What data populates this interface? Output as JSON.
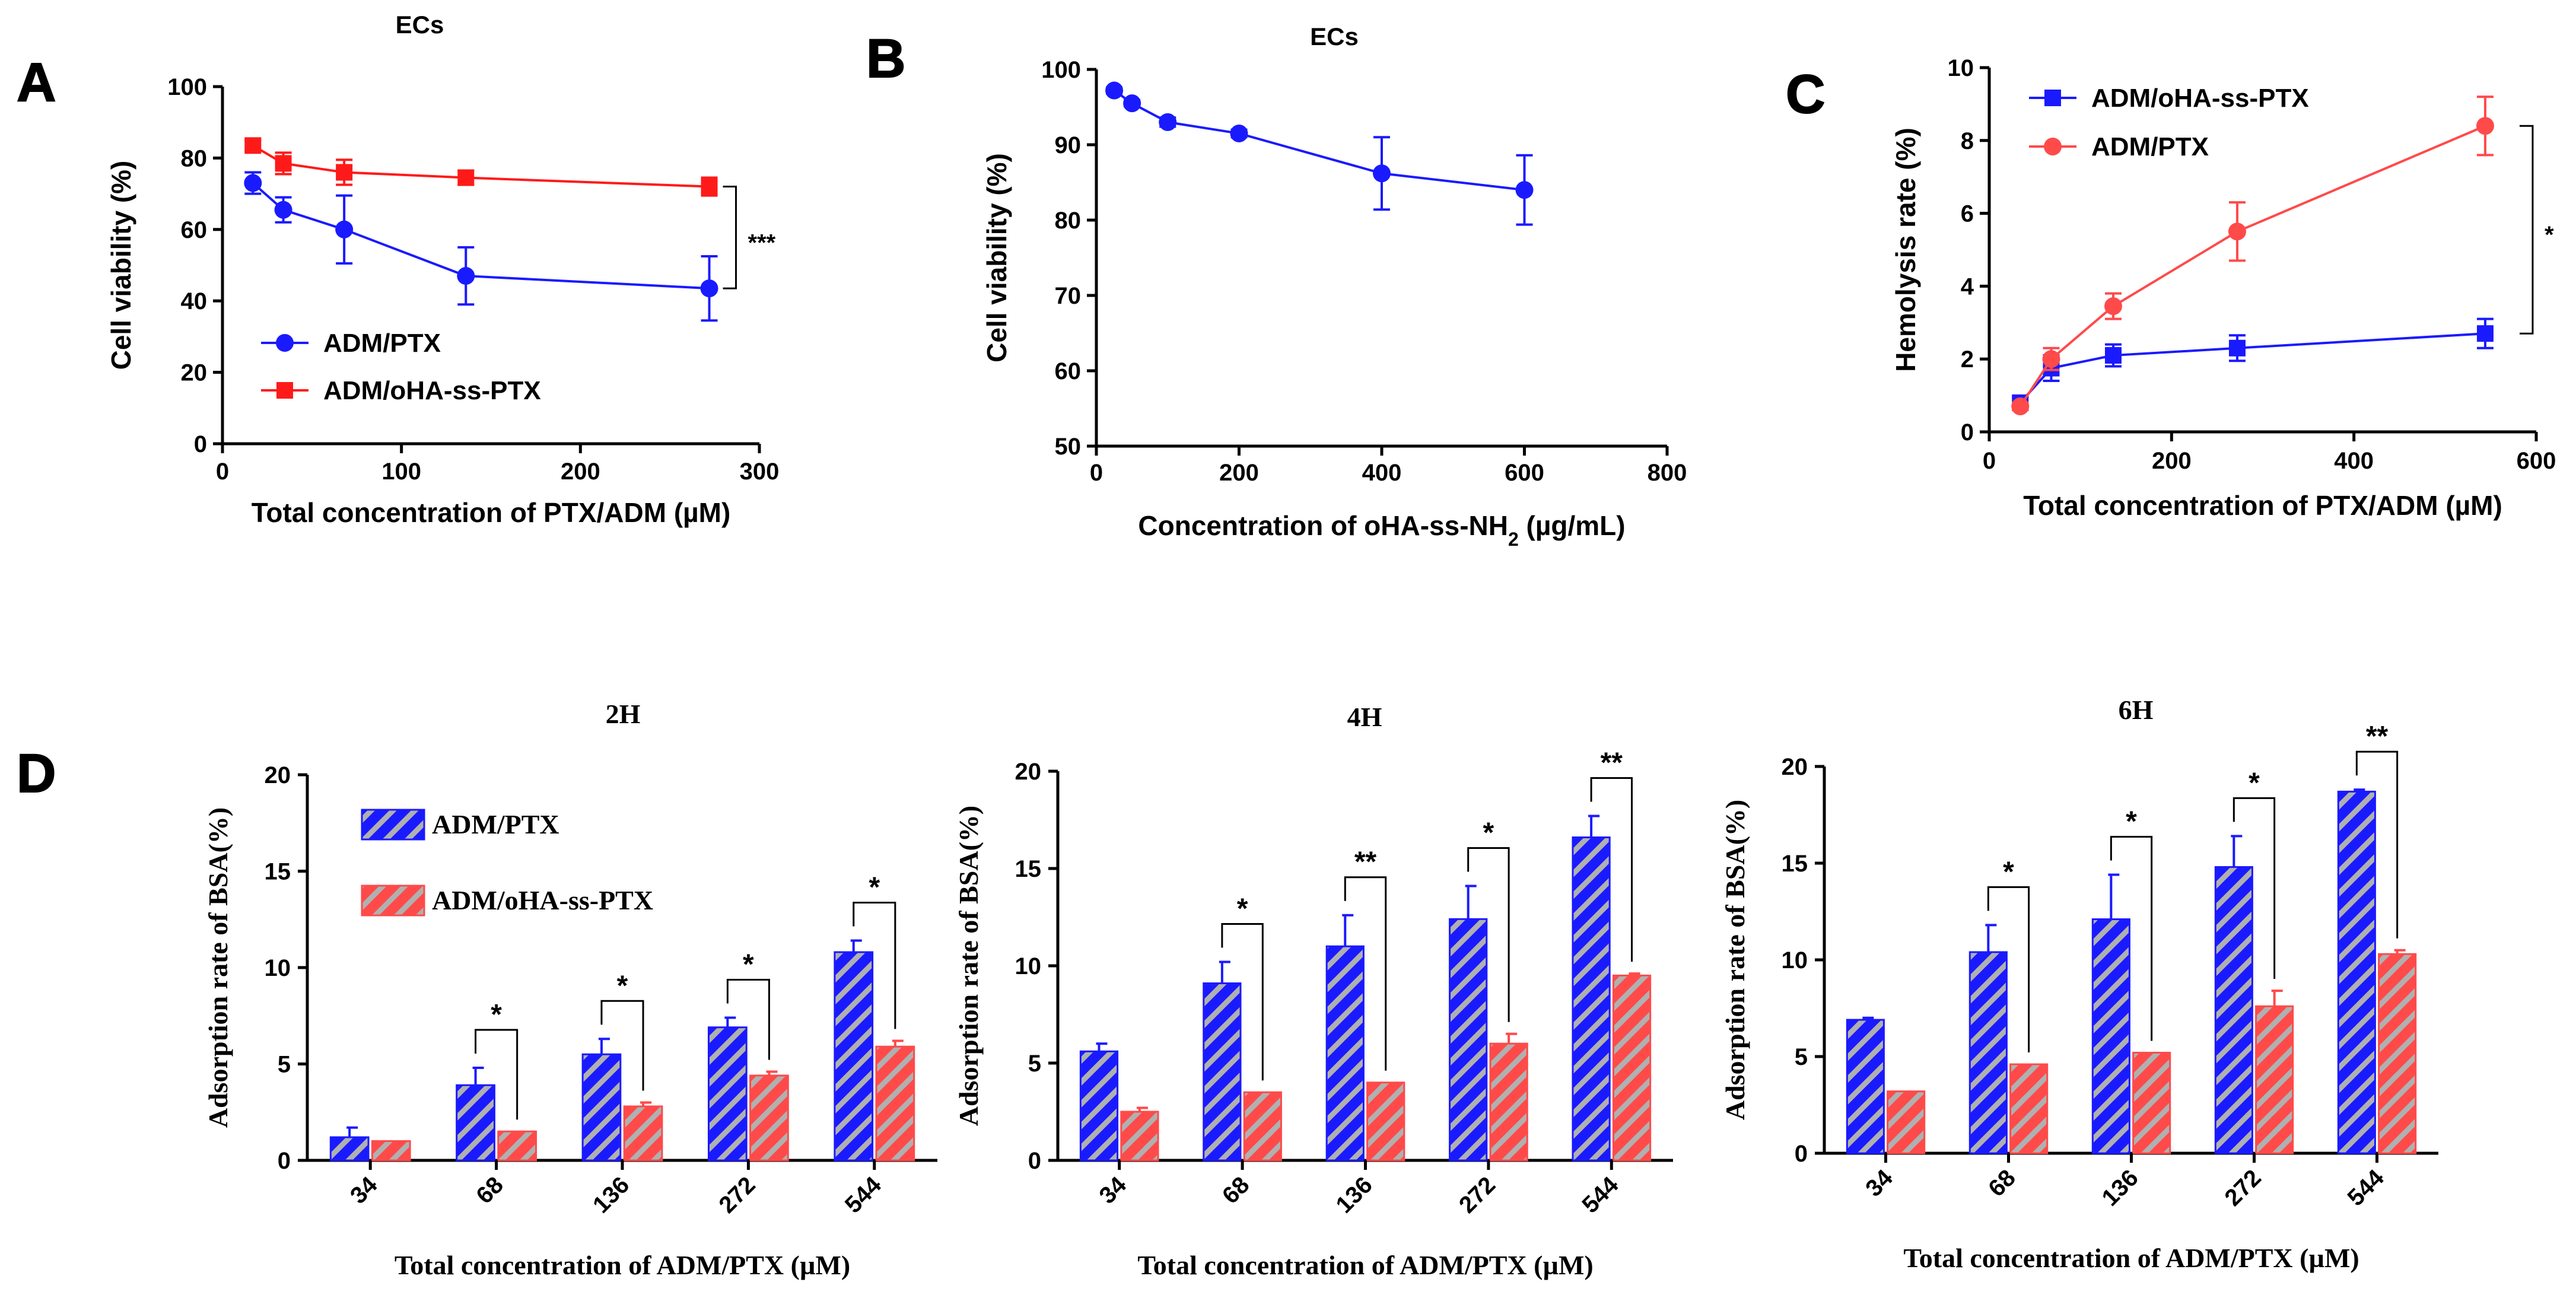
{
  "chart_data": [
    {
      "panel": "A",
      "type": "line",
      "title": "ECs",
      "xlabel": "Total concentration of PTX/ADM (µM)",
      "ylabel": "Cell viability (%)",
      "xlim": [
        0,
        300
      ],
      "ylim": [
        0,
        100
      ],
      "xticks": [
        "0",
        "100",
        "200",
        "300"
      ],
      "yticks": [
        "0",
        "20",
        "40",
        "60",
        "80",
        "100"
      ],
      "legend_position": "bottom-left",
      "series": [
        {
          "name": "ADM/PTX",
          "color": "#1a1aff",
          "marker": "circle",
          "x": [
            17,
            34,
            68,
            136,
            272
          ],
          "y": [
            73,
            65.5,
            60,
            47,
            43.5
          ],
          "err": [
            3,
            3.5,
            9.5,
            8,
            9
          ]
        },
        {
          "name": "ADM/oHA-ss-PTX",
          "color": "#ff1a1a",
          "marker": "square",
          "x": [
            17,
            34,
            68,
            136,
            272
          ],
          "y": [
            83.5,
            78.5,
            76,
            74.5,
            72
          ],
          "err": [
            1.5,
            3,
            3.5,
            2,
            2.5
          ]
        }
      ],
      "annotations": [
        {
          "text": "***",
          "between": [
            "ADM/PTX",
            "ADM/oHA-ss-PTX"
          ],
          "at_x": 272
        }
      ]
    },
    {
      "panel": "B",
      "type": "line",
      "title": "ECs",
      "xlabel": "Concentration of oHA-ss-NH",
      "xlabel_sub": "2",
      "xlabel_tail": " (µg/mL)",
      "ylabel": "Cell viability (%)",
      "xlim": [
        0,
        800
      ],
      "ylim": [
        50,
        100
      ],
      "xticks": [
        "0",
        "200",
        "400",
        "600",
        "800"
      ],
      "yticks": [
        "50",
        "60",
        "70",
        "80",
        "90",
        "100"
      ],
      "series": [
        {
          "name": "oHA-ss-NH2",
          "color": "#1a1aff",
          "marker": "circle",
          "x": [
            25,
            50,
            100,
            200,
            400,
            600
          ],
          "y": [
            97.2,
            95.5,
            93,
            91.5,
            86.2,
            84
          ],
          "err": [
            0.4,
            0.4,
            0.6,
            0.5,
            4.8,
            4.6
          ]
        }
      ]
    },
    {
      "panel": "C",
      "type": "line",
      "title": "",
      "xlabel": "Total concentration of PTX/ADM (µM)",
      "ylabel": "Hemolysis rate (%)",
      "xlim": [
        0,
        600
      ],
      "ylim": [
        0,
        10
      ],
      "xticks": [
        "0",
        "200",
        "400",
        "600"
      ],
      "yticks": [
        "0",
        "2",
        "4",
        "6",
        "8",
        "10"
      ],
      "legend_position": "top-left",
      "series": [
        {
          "name": "ADM/oHA-ss-PTX",
          "color": "#1a1aff",
          "marker": "square",
          "x": [
            34,
            68,
            136,
            272,
            544
          ],
          "y": [
            0.8,
            1.75,
            2.1,
            2.3,
            2.7
          ],
          "err": [
            0.15,
            0.35,
            0.3,
            0.35,
            0.4
          ]
        },
        {
          "name": "ADM/PTX",
          "color": "#ff4a4a",
          "marker": "circle",
          "x": [
            34,
            68,
            136,
            272,
            544
          ],
          "y": [
            0.7,
            2.0,
            3.45,
            5.5,
            8.4
          ],
          "err": [
            0.1,
            0.3,
            0.35,
            0.8,
            0.8
          ]
        }
      ],
      "annotations": [
        {
          "text": "*",
          "between": [
            "ADM/PTX",
            "ADM/oHA-ss-PTX"
          ],
          "at_x": 544
        }
      ]
    },
    {
      "panel": "D",
      "type": "bar",
      "title": "2H",
      "xlabel": "Total concentration of ADM/PTX (µM)",
      "ylabel": "Adsorption rate of BSA(%)",
      "ylim": [
        0,
        20
      ],
      "yticks": [
        "0",
        "5",
        "10",
        "15",
        "20"
      ],
      "categories": [
        "34",
        "68",
        "136",
        "272",
        "544"
      ],
      "legend_position": "top-left",
      "series": [
        {
          "name": "ADM/PTX",
          "color": "#1a1aff",
          "values": [
            1.2,
            3.9,
            5.5,
            6.9,
            10.8
          ],
          "err": [
            0.5,
            0.9,
            0.8,
            0.5,
            0.6
          ]
        },
        {
          "name": "ADM/oHA-ss-PTX",
          "color": "#ff4a4a",
          "values": [
            1.0,
            1.5,
            2.8,
            4.4,
            5.9
          ],
          "err": [
            0,
            0,
            0.2,
            0.2,
            0.3
          ]
        }
      ],
      "significance": [
        "",
        "*",
        "*",
        "*",
        "*"
      ]
    },
    {
      "panel": "D",
      "type": "bar",
      "title": "4H",
      "xlabel": "Total concentration of ADM/PTX (µM)",
      "ylabel": "Adsorption rate of BSA(%)",
      "ylim": [
        0,
        20
      ],
      "yticks": [
        "0",
        "5",
        "10",
        "15",
        "20"
      ],
      "categories": [
        "34",
        "68",
        "136",
        "272",
        "544"
      ],
      "series": [
        {
          "name": "ADM/PTX",
          "color": "#1a1aff",
          "values": [
            5.6,
            9.1,
            11.0,
            12.4,
            16.6
          ],
          "err": [
            0.4,
            1.1,
            1.6,
            1.7,
            1.1
          ]
        },
        {
          "name": "ADM/oHA-ss-PTX",
          "color": "#ff4a4a",
          "values": [
            2.5,
            3.5,
            4.0,
            6.0,
            9.5
          ],
          "err": [
            0.2,
            0,
            0,
            0.5,
            0.1
          ]
        }
      ],
      "significance": [
        "",
        "*",
        "**",
        "*",
        "**"
      ]
    },
    {
      "panel": "D",
      "type": "bar",
      "title": "6H",
      "xlabel": "Total concentration of ADM/PTX (µM)",
      "ylabel": "Adsorption rate of BSA(%)",
      "ylim": [
        0,
        20
      ],
      "yticks": [
        "0",
        "5",
        "10",
        "15",
        "20"
      ],
      "categories": [
        "34",
        "68",
        "136",
        "272",
        "544"
      ],
      "series": [
        {
          "name": "ADM/PTX",
          "color": "#1a1aff",
          "values": [
            6.9,
            10.4,
            12.1,
            14.8,
            18.7
          ],
          "err": [
            0.1,
            1.4,
            2.3,
            1.6,
            0.1
          ]
        },
        {
          "name": "ADM/oHA-ss-PTX",
          "color": "#ff4a4a",
          "values": [
            3.2,
            4.6,
            5.2,
            7.6,
            10.3
          ],
          "err": [
            0,
            0,
            0,
            0.8,
            0.2
          ]
        }
      ],
      "significance": [
        "",
        "*",
        "*",
        "*",
        "**"
      ]
    }
  ],
  "panel_labels": [
    "A",
    "B",
    "C",
    "D"
  ]
}
